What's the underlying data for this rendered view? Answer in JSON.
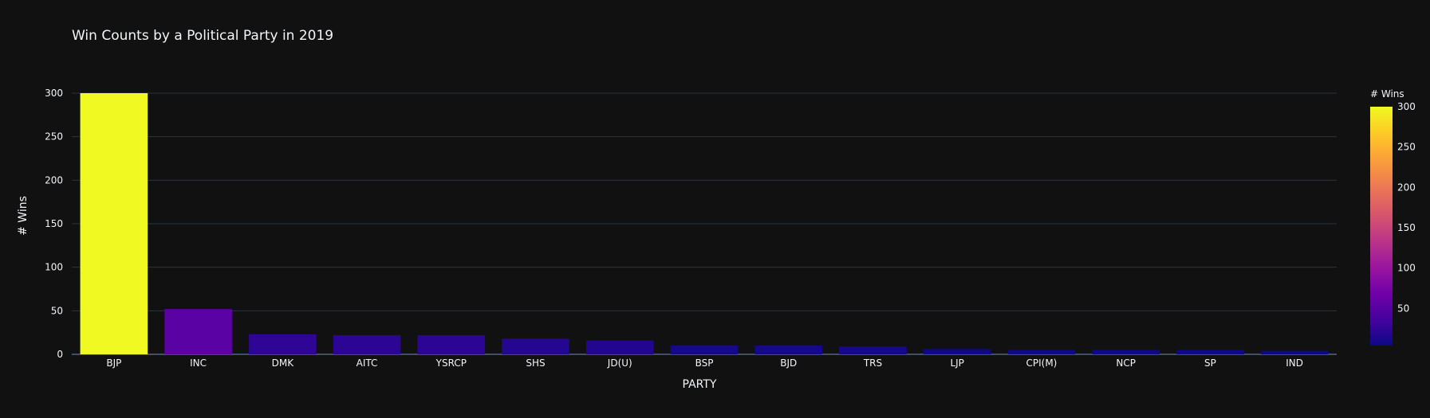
{
  "chart_data": {
    "type": "bar",
    "title": "Win Counts by a Political Party in 2019",
    "xlabel": "PARTY",
    "ylabel": "# Wins",
    "categories": [
      "BJP",
      "INC",
      "DMK",
      "AITC",
      "YSRCP",
      "SHS",
      "JD(U)",
      "BSP",
      "BJD",
      "TRS",
      "LJP",
      "CPI(M)",
      "NCP",
      "SP",
      "IND"
    ],
    "values": [
      300,
      52,
      23,
      22,
      22,
      18,
      16,
      10,
      10,
      9,
      6,
      5,
      5,
      5,
      4
    ],
    "ylim": [
      0,
      300
    ],
    "yticks": [
      0,
      50,
      100,
      150,
      200,
      250,
      300
    ],
    "grid": true,
    "colorbar": {
      "title": "# Wins",
      "ticks": [
        50,
        100,
        150,
        200,
        250,
        300
      ],
      "range": [
        4,
        300
      ],
      "colorscale": [
        "#0d0887",
        "#46039f",
        "#7201a8",
        "#9c179e",
        "#bd3786",
        "#d8576b",
        "#ed7953",
        "#fb9f3a",
        "#fdca26",
        "#f0f921"
      ]
    },
    "colors": {
      "background": "#111111",
      "grid": "#283442",
      "text": "#f2f5fa"
    }
  }
}
